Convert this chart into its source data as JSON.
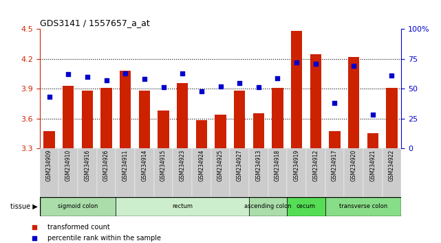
{
  "title": "GDS3141 / 1557657_a_at",
  "samples": [
    "GSM234909",
    "GSM234910",
    "GSM234916",
    "GSM234926",
    "GSM234911",
    "GSM234914",
    "GSM234915",
    "GSM234923",
    "GSM234924",
    "GSM234925",
    "GSM234927",
    "GSM234913",
    "GSM234918",
    "GSM234919",
    "GSM234912",
    "GSM234917",
    "GSM234920",
    "GSM234921",
    "GSM234922"
  ],
  "red_values": [
    3.47,
    3.93,
    3.88,
    3.91,
    4.08,
    3.88,
    3.68,
    3.96,
    3.58,
    3.64,
    3.88,
    3.65,
    3.91,
    4.48,
    4.25,
    3.47,
    4.22,
    3.45,
    3.91
  ],
  "blue_percentiles": [
    43,
    62,
    60,
    57,
    63,
    58,
    51,
    63,
    48,
    52,
    55,
    51,
    59,
    72,
    71,
    38,
    69,
    28,
    61
  ],
  "tissues": [
    {
      "label": "sigmoid colon",
      "start": 0,
      "end": 3,
      "color": "#aaddaa"
    },
    {
      "label": "rectum",
      "start": 4,
      "end": 10,
      "color": "#cceecc"
    },
    {
      "label": "ascending colon",
      "start": 11,
      "end": 12,
      "color": "#aaddaa"
    },
    {
      "label": "cecum",
      "start": 13,
      "end": 14,
      "color": "#55dd55"
    },
    {
      "label": "transverse colon",
      "start": 15,
      "end": 18,
      "color": "#88dd88"
    }
  ],
  "ylim_left": [
    3.3,
    4.5
  ],
  "ylim_right": [
    0,
    100
  ],
  "yticks_left": [
    3.3,
    3.6,
    3.9,
    4.2,
    4.5
  ],
  "yticks_right": [
    0,
    25,
    50,
    75,
    100
  ],
  "ytick_labels_right": [
    "0",
    "25",
    "50",
    "75",
    "100%"
  ],
  "bar_color": "#cc2200",
  "dot_color": "#0000cc",
  "bg_color": "#ffffff",
  "xticklabel_bg": "#cccccc",
  "grid_yticks": [
    3.6,
    3.9,
    4.2
  ]
}
